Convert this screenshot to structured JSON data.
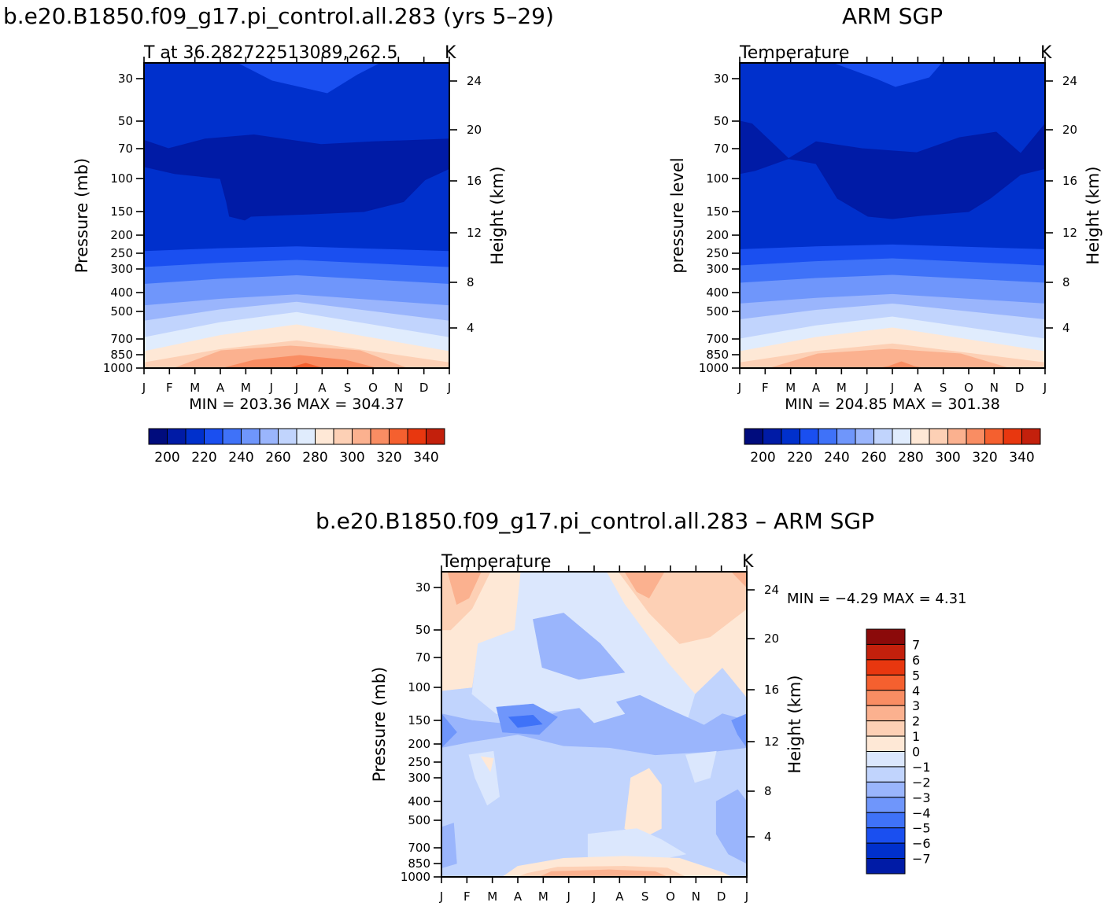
{
  "figure": {
    "left_title": "b.e20.B1850.f09_g17.pi_control.all.283 (yrs 5–29)",
    "right_title": "ARM SGP",
    "bottom_title": "b.e20.B1850.f09_g17.pi_control.all.283 – ARM SGP"
  },
  "colors": {
    "temperature_palette": [
      "#000c7d",
      "#001ba6",
      "#0030cc",
      "#1a4ff0",
      "#3f72f8",
      "#6f96fb",
      "#9ab5fc",
      "#c1d4fd",
      "#e0ecfd",
      "#fee8d6",
      "#fdd0b5",
      "#fbb18f",
      "#f98d63",
      "#f5602f",
      "#e8370f",
      "#c3200c",
      "#8b0a0a"
    ],
    "diff_palette": [
      "#000c7d",
      "#001ba6",
      "#0030cc",
      "#1a4ff0",
      "#3f72f8",
      "#6f96fb",
      "#9ab5fc",
      "#c1d4fd",
      "#dbe7fd",
      "#fee8d6",
      "#fdd0b5",
      "#fbb18f",
      "#f98d63",
      "#f5602f",
      "#e8370f",
      "#c3200c",
      "#8b0a0a"
    ]
  },
  "chart_data": [
    {
      "type": "heatmap",
      "id": "model",
      "title": "T at 36.282722513089,262.5",
      "units": "K",
      "ylabel": "Pressure (mb)",
      "right_ylabel": "Height (km)",
      "x": [
        "J",
        "F",
        "M",
        "A",
        "M",
        "J",
        "J",
        "A",
        "S",
        "O",
        "N",
        "D",
        "J"
      ],
      "y_ticks": [
        30,
        50,
        70,
        100,
        150,
        200,
        250,
        300,
        400,
        500,
        700,
        850,
        1000
      ],
      "height_ticks": [
        4,
        8,
        12,
        16,
        20,
        24
      ],
      "ylim": [
        20,
        1000
      ],
      "levels": [
        200,
        210,
        220,
        230,
        240,
        250,
        260,
        270,
        280,
        290,
        300,
        310,
        320,
        330,
        340
      ],
      "colorbar_labels": [
        200,
        220,
        240,
        260,
        280,
        300,
        320,
        340
      ],
      "stats": "MIN = 203.36 MAX = 304.37"
    },
    {
      "type": "heatmap",
      "id": "obs",
      "title": "Temperature",
      "units": "K",
      "ylabel": "pressure level",
      "right_ylabel": "Height (km)",
      "x": [
        "J",
        "F",
        "M",
        "A",
        "M",
        "J",
        "J",
        "A",
        "S",
        "O",
        "N",
        "D",
        "J"
      ],
      "y_ticks": [
        30,
        50,
        70,
        100,
        150,
        200,
        250,
        300,
        400,
        500,
        700,
        850,
        1000
      ],
      "height_ticks": [
        4,
        8,
        12,
        16,
        20,
        24
      ],
      "ylim": [
        20,
        1000
      ],
      "levels": [
        200,
        210,
        220,
        230,
        240,
        250,
        260,
        270,
        280,
        290,
        300,
        310,
        320,
        330,
        340
      ],
      "colorbar_labels": [
        200,
        220,
        240,
        260,
        280,
        300,
        320,
        340
      ],
      "stats": "MIN = 204.85 MAX = 301.38"
    },
    {
      "type": "heatmap",
      "id": "diff",
      "title": "Temperature",
      "units": "K",
      "ylabel": "Pressure (mb)",
      "right_ylabel": "Height (km)",
      "x": [
        "J",
        "F",
        "M",
        "A",
        "M",
        "J",
        "J",
        "A",
        "S",
        "O",
        "N",
        "D",
        "J"
      ],
      "y_ticks": [
        30,
        50,
        70,
        100,
        150,
        200,
        250,
        300,
        400,
        500,
        700,
        850,
        1000
      ],
      "height_ticks": [
        4,
        8,
        12,
        16,
        20,
        24
      ],
      "ylim": [
        20,
        1000
      ],
      "levels": [
        -7,
        -6,
        -5,
        -4,
        -3,
        -2,
        -1,
        0,
        1,
        2,
        3,
        4,
        5,
        6,
        7
      ],
      "colorbar_labels": [
        7,
        6,
        5,
        4,
        3,
        2,
        1,
        0,
        -1,
        -2,
        -3,
        -4,
        -5,
        -6,
        -7
      ],
      "stats": "MIN =   −4.29 MAX =     4.31"
    }
  ]
}
